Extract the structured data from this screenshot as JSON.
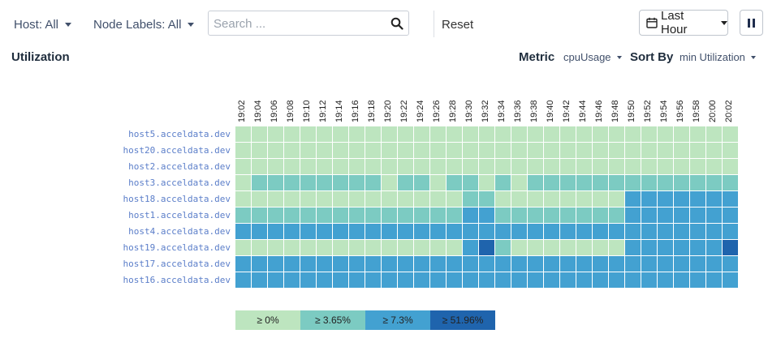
{
  "toolbar": {
    "host_filter": "Host: All",
    "node_labels_filter": "Node Labels: All",
    "search_placeholder": "Search ...",
    "reset_label": "Reset",
    "time_range": "Last Hour"
  },
  "utilization": {
    "title": "Utilization",
    "metric_label": "Metric",
    "metric_value": "cpuUsage",
    "sort_label": "Sort By",
    "sort_value": "min Utilization"
  },
  "heatmap": {
    "times": [
      "19:02",
      "19:04",
      "19:06",
      "19:08",
      "19:10",
      "19:12",
      "19:14",
      "19:16",
      "19:18",
      "19:20",
      "19:22",
      "19:24",
      "19:26",
      "19:28",
      "19:30",
      "19:32",
      "19:34",
      "19:36",
      "19:38",
      "19:40",
      "19:42",
      "19:44",
      "19:46",
      "19:48",
      "19:50",
      "19:52",
      "19:54",
      "19:56",
      "19:58",
      "20:00",
      "20:02"
    ],
    "hosts": [
      "host5.acceldata.dev",
      "host20.acceldata.dev",
      "host2.acceldata.dev",
      "host3.acceldata.dev",
      "host18.acceldata.dev",
      "host1.acceldata.dev",
      "host4.acceldata.dev",
      "host19.acceldata.dev",
      "host17.acceldata.dev",
      "host16.acceldata.dev"
    ],
    "levels": [
      [
        0,
        0,
        0,
        0,
        0,
        0,
        0,
        0,
        0,
        0,
        0,
        0,
        0,
        0,
        0,
        0,
        0,
        0,
        0,
        0,
        0,
        0,
        0,
        0,
        0,
        0,
        0,
        0,
        0,
        0,
        0
      ],
      [
        0,
        0,
        0,
        0,
        0,
        0,
        0,
        0,
        0,
        0,
        0,
        0,
        0,
        0,
        0,
        0,
        0,
        0,
        0,
        0,
        0,
        0,
        0,
        0,
        0,
        0,
        0,
        0,
        0,
        0,
        0
      ],
      [
        0,
        0,
        0,
        0,
        0,
        0,
        0,
        0,
        0,
        0,
        0,
        0,
        0,
        0,
        0,
        0,
        0,
        0,
        0,
        0,
        0,
        0,
        0,
        0,
        0,
        0,
        0,
        0,
        0,
        0,
        0
      ],
      [
        0,
        1,
        1,
        1,
        1,
        1,
        1,
        1,
        1,
        0,
        1,
        1,
        0,
        1,
        1,
        0,
        1,
        0,
        1,
        1,
        1,
        1,
        1,
        1,
        1,
        1,
        1,
        1,
        1,
        1,
        1
      ],
      [
        0,
        0,
        0,
        0,
        0,
        0,
        0,
        0,
        0,
        0,
        0,
        0,
        0,
        0,
        1,
        1,
        0,
        0,
        0,
        0,
        0,
        0,
        0,
        0,
        2,
        2,
        2,
        2,
        2,
        2,
        2
      ],
      [
        1,
        1,
        1,
        1,
        1,
        1,
        1,
        1,
        1,
        1,
        1,
        1,
        1,
        1,
        2,
        2,
        1,
        1,
        1,
        1,
        1,
        1,
        1,
        1,
        2,
        2,
        2,
        2,
        2,
        2,
        2
      ],
      [
        2,
        2,
        2,
        2,
        2,
        2,
        2,
        2,
        2,
        2,
        2,
        2,
        2,
        2,
        2,
        2,
        2,
        2,
        2,
        2,
        2,
        2,
        2,
        2,
        2,
        2,
        2,
        2,
        2,
        2,
        2
      ],
      [
        0,
        0,
        0,
        0,
        0,
        0,
        0,
        0,
        0,
        0,
        0,
        0,
        0,
        0,
        2,
        3,
        1,
        0,
        0,
        0,
        0,
        0,
        0,
        0,
        2,
        2,
        2,
        2,
        2,
        2,
        3
      ],
      [
        2,
        2,
        2,
        2,
        2,
        2,
        2,
        2,
        2,
        2,
        2,
        2,
        2,
        2,
        2,
        2,
        2,
        2,
        2,
        2,
        2,
        2,
        2,
        2,
        2,
        2,
        2,
        2,
        2,
        2,
        2
      ],
      [
        2,
        2,
        2,
        2,
        2,
        2,
        2,
        2,
        2,
        2,
        2,
        2,
        2,
        2,
        2,
        2,
        2,
        2,
        2,
        2,
        2,
        2,
        2,
        2,
        2,
        2,
        2,
        2,
        2,
        2,
        2
      ]
    ],
    "colors": [
      "#bde5bf",
      "#7ccbc2",
      "#43a1d1",
      "#1f64ad"
    ]
  },
  "legend": [
    {
      "label": "≥ 0%",
      "color": "#bde5bf"
    },
    {
      "label": "≥ 3.65%",
      "color": "#7ccbc2"
    },
    {
      "label": "≥ 7.3%",
      "color": "#43a1d1"
    },
    {
      "label": "≥ 51.96%",
      "color": "#1f64ad"
    }
  ]
}
